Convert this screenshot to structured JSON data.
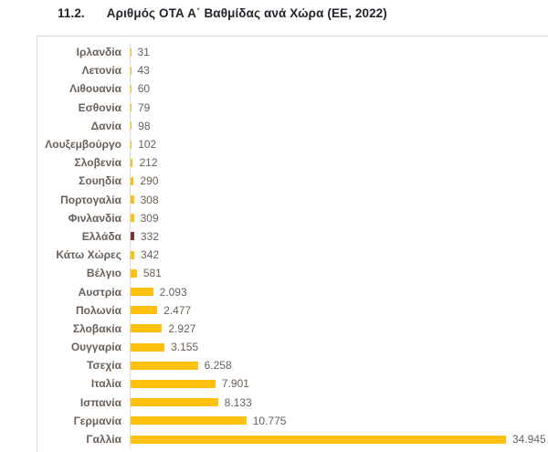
{
  "page": {
    "heading_number": "11.2.",
    "heading_title": "Αριθμός ΟΤΑ Α΄ Βαθμίδας ανά Χώρα (ΕΕ, 2022)"
  },
  "chart_data": {
    "type": "bar",
    "orientation": "horizontal",
    "title": "Αριθμός ΟΤΑ Α΄ Βαθμίδας ανά Χώρα (ΕΕ, 2022)",
    "categories": [
      "Ιρλανδία",
      "Λετονία",
      "Λιθουανία",
      "Εσθονία",
      "Δανία",
      "Λουξεμβούργο",
      "Σλοβενία",
      "Σουηδία",
      "Πορτογαλία",
      "Φινλανδία",
      "Ελλάδα",
      "Κάτω Χώρες",
      "Βέλγιο",
      "Αυστρία",
      "Πολωνία",
      "Σλοβακία",
      "Ουγγαρία",
      "Τσεχία",
      "Ιταλία",
      "Ισπανία",
      "Γερμανία",
      "Γαλλία"
    ],
    "values": [
      31,
      43,
      60,
      79,
      98,
      102,
      212,
      290,
      308,
      309,
      332,
      342,
      581,
      2093,
      2477,
      2927,
      3155,
      6258,
      7901,
      8133,
      10775,
      34945
    ],
    "value_labels": [
      "31",
      "43",
      "60",
      "79",
      "98",
      "102",
      "212",
      "290",
      "308",
      "309",
      "332",
      "342",
      "581",
      "2.093",
      "2.477",
      "2.927",
      "3.155",
      "6.258",
      "7.901",
      "8.133",
      "10.775",
      "34.945"
    ],
    "xlim": [
      0,
      34945
    ],
    "bar_color": "#FFC010",
    "highlight": {
      "category": "Ελλάδα",
      "index": 10,
      "color": "#7B3434"
    },
    "axis_line_color": "#D9D9D9",
    "label_color": "#6A6059",
    "grid": false,
    "legend": false,
    "value_labels_position": "outside-end"
  }
}
